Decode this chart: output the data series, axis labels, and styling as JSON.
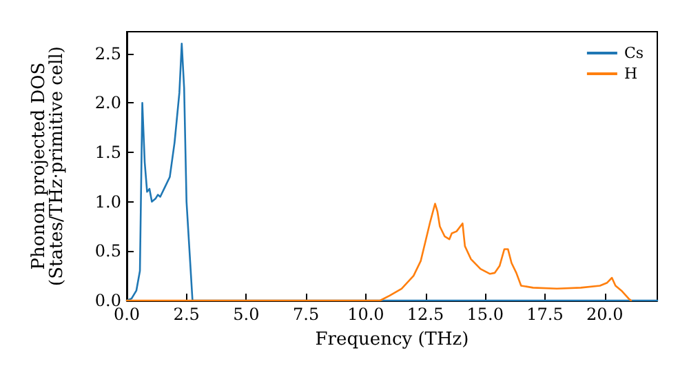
{
  "chart_data": {
    "type": "line",
    "xlabel": "Frequency (THz)",
    "ylabel": "Phonon projected DOS\n(States/THz·primitive cell)",
    "xlim": [
      0,
      22.2
    ],
    "ylim": [
      0,
      2.72
    ],
    "xticks": [
      {
        "value": 0,
        "label": "0.0"
      },
      {
        "value": 2.5,
        "label": "2.5"
      },
      {
        "value": 5,
        "label": "5.0"
      },
      {
        "value": 7.5,
        "label": "7.5"
      },
      {
        "value": 10,
        "label": "10.0"
      },
      {
        "value": 12.5,
        "label": "12.5"
      },
      {
        "value": 15,
        "label": "15.0"
      },
      {
        "value": 17.5,
        "label": "17.5"
      },
      {
        "value": 20,
        "label": "20.0"
      }
    ],
    "yticks": [
      {
        "value": 0,
        "label": "0.0"
      },
      {
        "value": 0.5,
        "label": "0.5"
      },
      {
        "value": 1,
        "label": "1.0"
      },
      {
        "value": 1.5,
        "label": "1.5"
      },
      {
        "value": 2,
        "label": "2.0"
      },
      {
        "value": 2.5,
        "label": "2.5"
      }
    ],
    "legend": "top right",
    "grid": false,
    "marker": "none",
    "line_style": "solid",
    "series": [
      {
        "name": "Cs",
        "color": "#1f77b4",
        "x": [
          0,
          0.2,
          0.4,
          0.55,
          0.65,
          0.75,
          0.85,
          0.95,
          1.05,
          1.2,
          1.3,
          1.4,
          1.6,
          1.8,
          2.0,
          2.2,
          2.3,
          2.4,
          2.5,
          2.65,
          2.75,
          3,
          22.2
        ],
        "values": [
          0,
          0.02,
          0.1,
          0.3,
          2.0,
          1.4,
          1.1,
          1.13,
          1.0,
          1.03,
          1.07,
          1.05,
          1.15,
          1.25,
          1.6,
          2.1,
          2.6,
          2.15,
          1.0,
          0.4,
          0,
          0,
          0
        ]
      },
      {
        "name": "H",
        "color": "#ff7f0e",
        "x": [
          0,
          10.6,
          11,
          11.5,
          12,
          12.3,
          12.5,
          12.7,
          12.9,
          13.0,
          13.1,
          13.3,
          13.5,
          13.6,
          13.8,
          14.05,
          14.15,
          14.4,
          14.8,
          15.2,
          15.4,
          15.6,
          15.8,
          15.95,
          16.1,
          16.3,
          16.5,
          17,
          18,
          19,
          19.8,
          20.1,
          20.3,
          20.45,
          20.7,
          21,
          21.1
        ],
        "values": [
          0,
          0,
          0.05,
          0.12,
          0.25,
          0.4,
          0.6,
          0.8,
          0.98,
          0.9,
          0.75,
          0.65,
          0.62,
          0.68,
          0.7,
          0.78,
          0.55,
          0.42,
          0.32,
          0.27,
          0.28,
          0.35,
          0.52,
          0.52,
          0.38,
          0.28,
          0.15,
          0.13,
          0.12,
          0.13,
          0.15,
          0.18,
          0.23,
          0.15,
          0.1,
          0.02,
          0
        ]
      }
    ]
  }
}
